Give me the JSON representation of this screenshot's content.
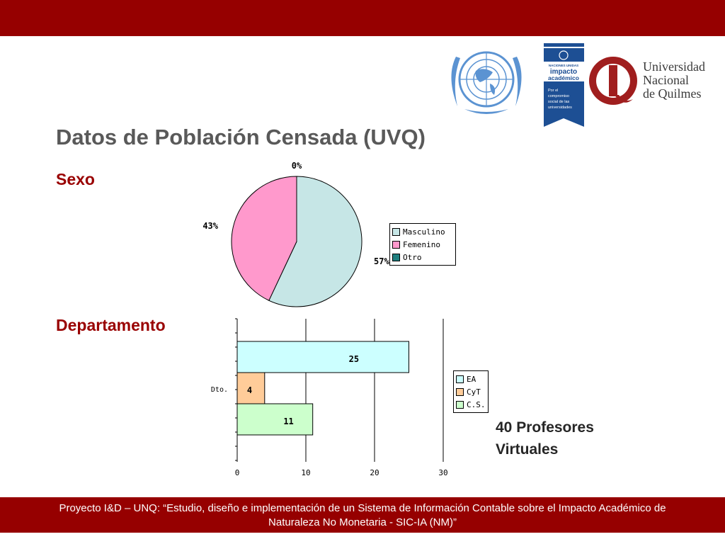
{
  "header": {
    "title": "Datos de Población Censada (UVQ)"
  },
  "logos": {
    "ia_small": "NACIONES UNIDAS",
    "ia_name_line1": "impacto",
    "ia_name_line2": "académico",
    "ia_tagline": [
      "Por el",
      "compromiso",
      "social de las",
      "universidades"
    ],
    "unq_name": [
      "Universidad",
      "Nacional",
      "de Quilmes"
    ]
  },
  "sections": {
    "sexo": "Sexo",
    "departamento": "Departamento"
  },
  "note": {
    "line1": "40 Profesores",
    "line2": "Virtuales"
  },
  "footer": {
    "line1": "Proyecto I&D – UNQ: “Estudio, diseño e implementación de un Sistema de Información Contable sobre el Impacto Académico de",
    "line2": "Naturaleza No Monetaria - SIC-IA (NM)”"
  },
  "colors": {
    "brand": "#960000",
    "heading": "#990000",
    "masculino": "#c6e6e6",
    "femenino": "#ff99cc",
    "otro": "#1f7f7f",
    "ea": "#ccffff",
    "cyt": "#ffcc99",
    "cs": "#ccffcc"
  },
  "chart_data": [
    {
      "type": "pie",
      "categories": [
        "Masculino",
        "Femenino",
        "Otro"
      ],
      "values": [
        57,
        43,
        0
      ],
      "labels": [
        "57%",
        "43%",
        "0%"
      ],
      "legend": [
        "Masculino",
        "Femenino",
        "Otro"
      ],
      "legend_position": "right"
    },
    {
      "type": "bar",
      "orientation": "horizontal",
      "categories": [
        "Dto."
      ],
      "series": [
        {
          "name": "EA",
          "values": [
            25
          ]
        },
        {
          "name": "CyT",
          "values": [
            4
          ]
        },
        {
          "name": "C.S.",
          "values": [
            11
          ]
        }
      ],
      "xlim": [
        0,
        30
      ],
      "xticks": [
        "0",
        "10",
        "20",
        "30"
      ],
      "grid": true,
      "legend_position": "right"
    }
  ]
}
